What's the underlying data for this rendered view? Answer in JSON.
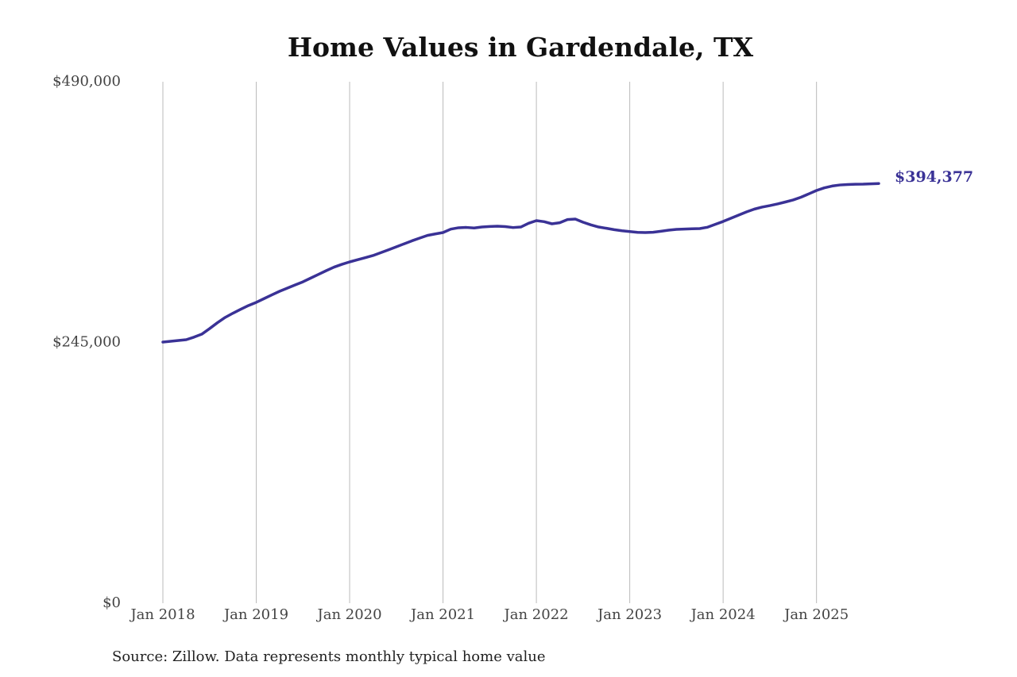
{
  "chart_data": {
    "type": "line",
    "title": "Home Values in Gardendale, TX",
    "source": "Source: Zillow. Data represents monthly typical home value",
    "x": [
      "2018-01",
      "2018-02",
      "2018-03",
      "2018-04",
      "2018-05",
      "2018-06",
      "2018-07",
      "2018-08",
      "2018-09",
      "2018-10",
      "2018-11",
      "2018-12",
      "2019-01",
      "2019-02",
      "2019-03",
      "2019-04",
      "2019-05",
      "2019-06",
      "2019-07",
      "2019-08",
      "2019-09",
      "2019-10",
      "2019-11",
      "2019-12",
      "2020-01",
      "2020-02",
      "2020-03",
      "2020-04",
      "2020-05",
      "2020-06",
      "2020-07",
      "2020-08",
      "2020-09",
      "2020-10",
      "2020-11",
      "2020-12",
      "2021-01",
      "2021-02",
      "2021-03",
      "2021-04",
      "2021-05",
      "2021-06",
      "2021-07",
      "2021-08",
      "2021-09",
      "2021-10",
      "2021-11",
      "2021-12",
      "2022-01",
      "2022-02",
      "2022-03",
      "2022-04",
      "2022-05",
      "2022-06",
      "2022-07",
      "2022-08",
      "2022-09",
      "2022-10",
      "2022-11",
      "2022-12",
      "2023-01",
      "2023-02",
      "2023-03",
      "2023-04",
      "2023-05",
      "2023-06",
      "2023-07",
      "2023-08",
      "2023-09",
      "2023-10",
      "2023-11",
      "2023-12",
      "2024-01",
      "2024-02",
      "2024-03",
      "2024-04",
      "2024-05",
      "2024-06",
      "2024-07",
      "2024-08",
      "2024-09",
      "2024-10",
      "2024-11",
      "2024-12",
      "2025-01",
      "2025-02",
      "2025-03",
      "2025-04",
      "2025-05",
      "2025-06",
      "2025-07",
      "2025-08",
      "2025-09"
    ],
    "values": [
      245400,
      246100,
      246900,
      247600,
      250000,
      252800,
      258000,
      263500,
      268500,
      272500,
      276200,
      279700,
      282700,
      286200,
      289700,
      293100,
      296100,
      299100,
      302000,
      305500,
      309000,
      312500,
      315800,
      318400,
      320700,
      322700,
      324700,
      326700,
      329400,
      332100,
      334900,
      337700,
      340500,
      343100,
      345600,
      347000,
      348300,
      351500,
      352800,
      353100,
      352600,
      353500,
      354000,
      354300,
      353900,
      353000,
      353500,
      357000,
      359500,
      358500,
      356500,
      357500,
      360500,
      361000,
      358000,
      355500,
      353500,
      352300,
      351000,
      350000,
      349200,
      348500,
      348300,
      348600,
      349500,
      350500,
      351300,
      351600,
      351800,
      352000,
      353300,
      356000,
      358700,
      361700,
      364700,
      367700,
      370300,
      372200,
      373600,
      375200,
      377000,
      378900,
      381500,
      384600,
      387800,
      390300,
      392000,
      393000,
      393400,
      393700,
      393800,
      394100,
      394377
    ],
    "value_labels": [
      null,
      null,
      null,
      null,
      null,
      null,
      null,
      null,
      null,
      null,
      null,
      null,
      null,
      null,
      null,
      null,
      null,
      null,
      null,
      null,
      null,
      null,
      null,
      null,
      null,
      null,
      null,
      null,
      null,
      null,
      null,
      null,
      null,
      null,
      null,
      null,
      null,
      null,
      null,
      null,
      null,
      null,
      null,
      null,
      null,
      null,
      null,
      null,
      null,
      null,
      null,
      null,
      null,
      null,
      null,
      null,
      null,
      null,
      null,
      null,
      null,
      null,
      null,
      null,
      null,
      null,
      null,
      null,
      null,
      null,
      null,
      null,
      null,
      null,
      null,
      null,
      null,
      null,
      null,
      null,
      null,
      null,
      null,
      null,
      null,
      null,
      null,
      null,
      null,
      null,
      null,
      null,
      "$394,377"
    ],
    "color": "#3a3296",
    "xlim": [
      "2018-01",
      "2025-09"
    ],
    "xticks": [
      {
        "value": "2018-01",
        "label": "Jan 2018"
      },
      {
        "value": "2019-01",
        "label": "Jan 2019"
      },
      {
        "value": "2020-01",
        "label": "Jan 2020"
      },
      {
        "value": "2021-01",
        "label": "Jan 2021"
      },
      {
        "value": "2022-01",
        "label": "Jan 2022"
      },
      {
        "value": "2023-01",
        "label": "Jan 2023"
      },
      {
        "value": "2024-01",
        "label": "Jan 2024"
      },
      {
        "value": "2025-01",
        "label": "Jan 2025"
      }
    ],
    "ylim": [
      0,
      490000
    ],
    "yticks": [
      {
        "value": 0,
        "label": "$0"
      },
      {
        "value": 245000,
        "label": "$245,000"
      },
      {
        "value": 490000,
        "label": "$490,000"
      }
    ],
    "grid": "x"
  }
}
